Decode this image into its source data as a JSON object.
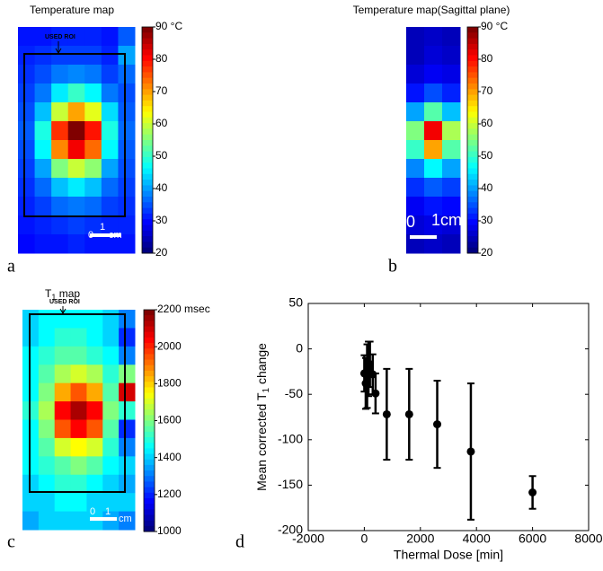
{
  "chart_data": [
    {
      "type": "heatmap",
      "title": "Temperature map",
      "panel_label": "a",
      "annotation": "USED ROI",
      "scale_labels": [
        "0",
        "1",
        "cm"
      ],
      "zlim": [
        20,
        90
      ],
      "cticks": [
        {
          "value": 90,
          "label": "90 °C"
        },
        80,
        70,
        60,
        50,
        40,
        30,
        20
      ],
      "z": [
        [
          30,
          30,
          31,
          31,
          31,
          30,
          35
        ],
        [
          31,
          32,
          33,
          33,
          33,
          31,
          40
        ],
        [
          32,
          34,
          37,
          38,
          37,
          33,
          36
        ],
        [
          33,
          37,
          45,
          50,
          46,
          37,
          34
        ],
        [
          34,
          42,
          60,
          70,
          62,
          44,
          35
        ],
        [
          35,
          48,
          78,
          90,
          80,
          48,
          36
        ],
        [
          34,
          46,
          72,
          82,
          74,
          46,
          35
        ],
        [
          33,
          40,
          55,
          60,
          56,
          40,
          34
        ],
        [
          32,
          36,
          42,
          45,
          42,
          36,
          33
        ],
        [
          31,
          33,
          36,
          37,
          36,
          33,
          32
        ],
        [
          30,
          31,
          32,
          33,
          32,
          31,
          31
        ],
        [
          29,
          30,
          30,
          31,
          30,
          30,
          30
        ]
      ]
    },
    {
      "type": "heatmap",
      "title": "Temperature map(Sagittal plane)",
      "panel_label": "b",
      "scale_labels": [
        "0",
        "1cm"
      ],
      "zlim": [
        20,
        90
      ],
      "cticks": [
        {
          "value": 90,
          "label": "90 °C"
        },
        80,
        70,
        60,
        50,
        40,
        30,
        20
      ],
      "z": [
        [
          24,
          25,
          24
        ],
        [
          24,
          26,
          25
        ],
        [
          26,
          28,
          27
        ],
        [
          30,
          34,
          31
        ],
        [
          40,
          52,
          42
        ],
        [
          55,
          82,
          58
        ],
        [
          50,
          70,
          52
        ],
        [
          38,
          46,
          40
        ],
        [
          32,
          35,
          33
        ],
        [
          28,
          30,
          29
        ],
        [
          26,
          27,
          26
        ],
        [
          24,
          25,
          24
        ]
      ]
    },
    {
      "type": "heatmap",
      "title": [
        "T",
        "1",
        " map"
      ],
      "panel_label": "c",
      "annotation": "USED ROI",
      "scale_labels": [
        "0",
        "1",
        "cm"
      ],
      "zlim": [
        1000,
        2200
      ],
      "cticks": [
        {
          "value": 2200,
          "label": "2200 msec"
        },
        2000,
        1800,
        1600,
        1400,
        1200,
        1000
      ],
      "z": [
        [
          1400,
          1450,
          1450,
          1450,
          1450,
          1400,
          1300
        ],
        [
          1400,
          1450,
          1500,
          1500,
          1450,
          1400,
          1200
        ],
        [
          1450,
          1500,
          1550,
          1550,
          1500,
          1450,
          1300
        ],
        [
          1450,
          1550,
          1650,
          1700,
          1650,
          1500,
          1600
        ],
        [
          1450,
          1600,
          1850,
          1950,
          1850,
          1550,
          2100
        ],
        [
          1500,
          1650,
          2050,
          2150,
          2050,
          1600,
          1500
        ],
        [
          1450,
          1600,
          1950,
          2050,
          1950,
          1550,
          1200
        ],
        [
          1450,
          1550,
          1700,
          1750,
          1700,
          1500,
          1300
        ],
        [
          1450,
          1500,
          1550,
          1600,
          1550,
          1450,
          1400
        ],
        [
          1400,
          1450,
          1500,
          1500,
          1450,
          1400,
          1350
        ],
        [
          1400,
          1400,
          1450,
          1450,
          1400,
          1400,
          1400
        ],
        [
          1350,
          1400,
          1400,
          1400,
          1400,
          1350,
          1300
        ]
      ]
    },
    {
      "type": "scatter",
      "panel_label": "d",
      "x_label": "Thermal Dose [min]",
      "y_label": [
        "Mean corrected T",
        "1",
        " change"
      ],
      "x": [
        0,
        50,
        100,
        150,
        200,
        300,
        400,
        800,
        1600,
        2600,
        3800,
        6000
      ],
      "values": [
        -27,
        -38,
        -30,
        -22,
        -17,
        -28,
        -49,
        -72,
        -72,
        -83,
        -113,
        -158
      ],
      "errors": [
        20,
        28,
        35,
        30,
        25,
        22,
        22,
        50,
        50,
        48,
        75,
        18
      ],
      "color": "#000000",
      "xlim": [
        -2000,
        8000
      ],
      "xticks": [
        -2000,
        0,
        2000,
        4000,
        6000,
        8000
      ],
      "ylim": [
        -200,
        50
      ],
      "yticks": [
        -200,
        -150,
        -100,
        -50,
        0,
        50
      ]
    }
  ]
}
